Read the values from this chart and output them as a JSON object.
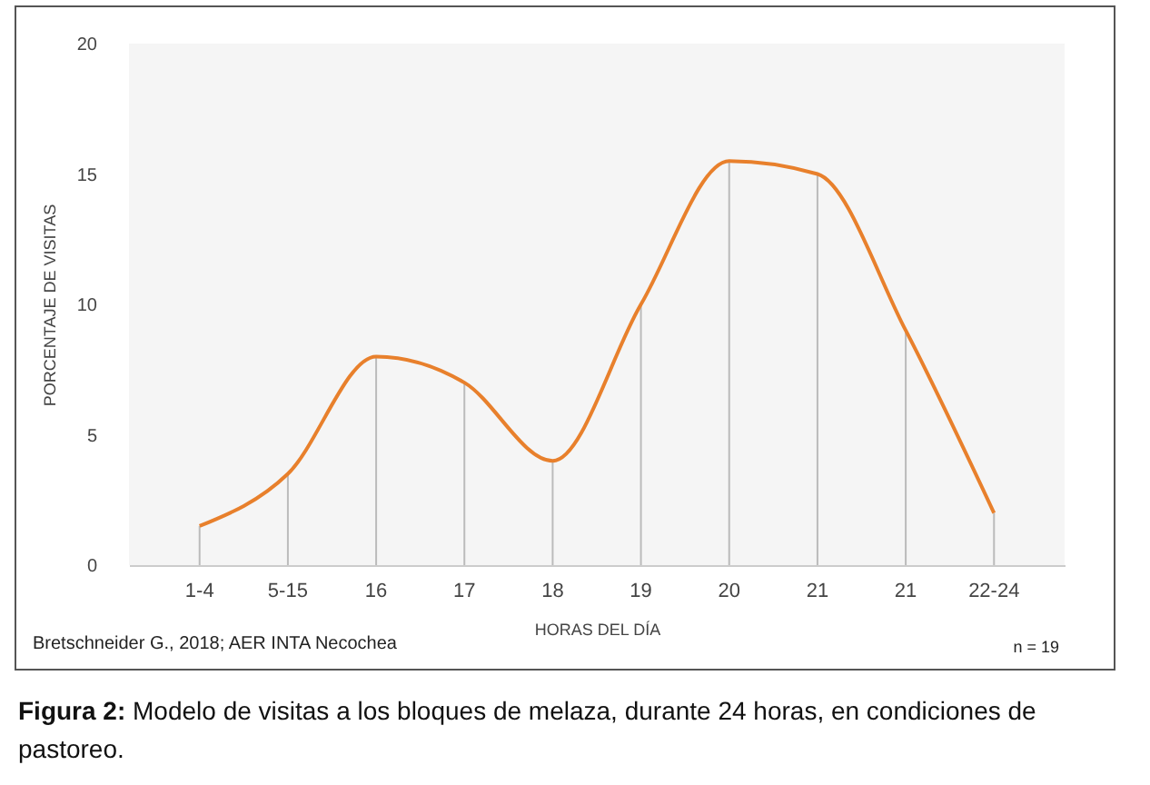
{
  "chart_data": {
    "type": "line",
    "xlabel": "HORAS DEL DÍA",
    "ylabel": "PORCENTAJE DE VISITAS",
    "categories": [
      "1-4",
      "5-15",
      "16",
      "17",
      "18",
      "19",
      "20",
      "21",
      "21",
      "22-24"
    ],
    "series": [
      {
        "type": "bar",
        "color": "#bbbbbb",
        "values": [
          1.5,
          3.5,
          8,
          7,
          4,
          10,
          15.5,
          15,
          9,
          2
        ]
      },
      {
        "color": "#e8802c",
        "values": [
          1.5,
          3.5,
          8,
          7,
          4,
          10,
          15.5,
          15,
          9,
          2
        ]
      }
    ],
    "ylim": [
      0,
      20
    ],
    "yticks": [
      0,
      5,
      10,
      15,
      20
    ],
    "grid": false,
    "annotations": [
      "Bretschneider G., 2018;  AER INTA Necochea",
      "n = 19",
      "Figura 2: Modelo de visitas a los bloques de melaza, durante 24 horas, en condiciones de pastoreo."
    ]
  }
}
